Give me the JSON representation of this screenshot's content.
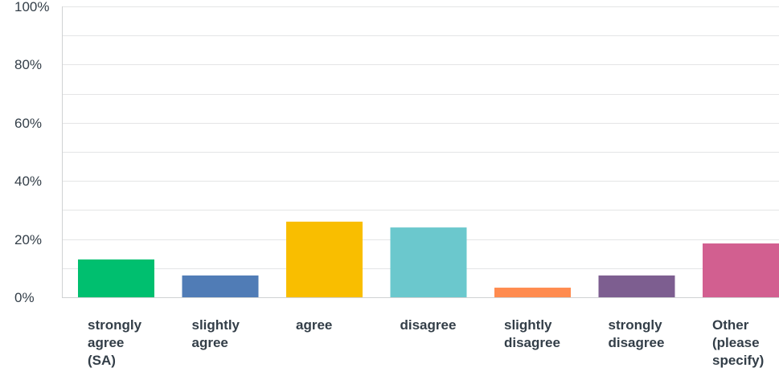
{
  "chart_data": {
    "type": "bar",
    "categories": [
      [
        "strongly",
        "agree",
        "(SA)"
      ],
      [
        "slightly",
        "agree"
      ],
      [
        "agree"
      ],
      [
        "disagree"
      ],
      [
        "slightly",
        "disagree"
      ],
      [
        "strongly",
        "disagree"
      ],
      [
        "Other",
        "(please",
        "specify)"
      ]
    ],
    "values": [
      13,
      7.5,
      26,
      24,
      3.3,
      7.5,
      18.5
    ],
    "colors": [
      "#00bf6f",
      "#507cb6",
      "#f9be00",
      "#6bc8cd",
      "#ff8b4f",
      "#7d5e90",
      "#d25f90"
    ],
    "ylim": [
      0,
      100
    ],
    "yticks": [
      "0%",
      "20%",
      "40%",
      "60%",
      "80%",
      "100%"
    ],
    "ytick_values": [
      0,
      20,
      40,
      60,
      80,
      100
    ],
    "minor_gridlines": [
      10,
      30,
      50,
      70,
      90
    ],
    "grid": true,
    "title": "",
    "xlabel": "",
    "ylabel": ""
  }
}
